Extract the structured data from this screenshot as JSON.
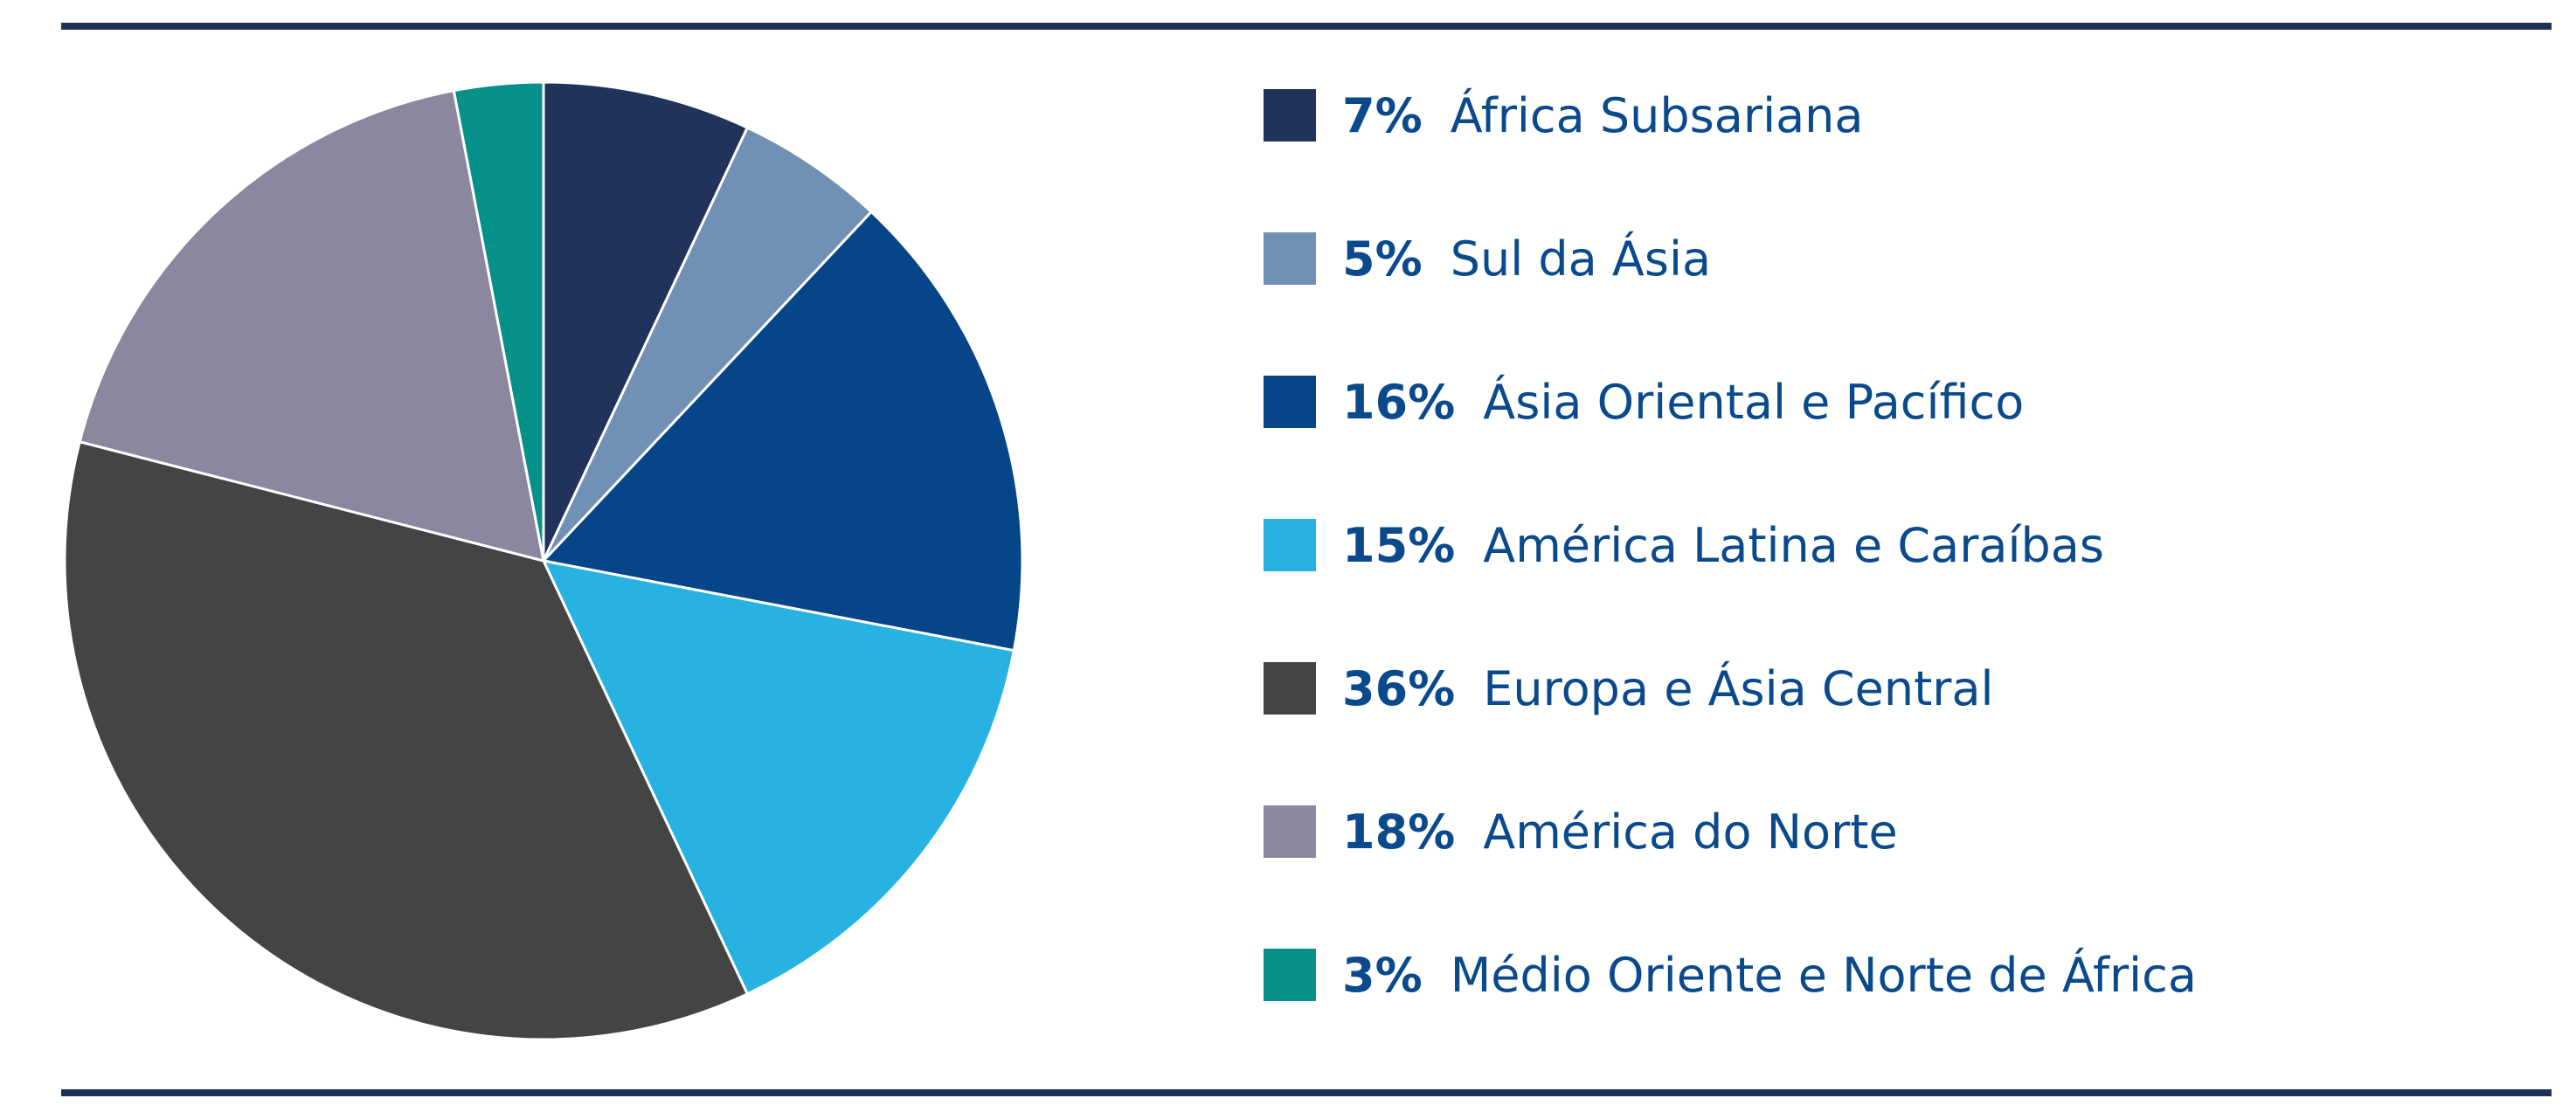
{
  "chart_data": {
    "type": "pie",
    "title": "",
    "slices": [
      {
        "label": "África Subsariana",
        "value": 7,
        "value_label": "7%",
        "color": "#21325b"
      },
      {
        "label": "Sul da Ásia",
        "value": 5,
        "value_label": "5%",
        "color": "#7090b4"
      },
      {
        "label": "Ásia Oriental e Pacífico",
        "value": 16,
        "value_label": "16%",
        "color": "#074589"
      },
      {
        "label": "América Latina e Caraíbas",
        "value": 15,
        "value_label": "15%",
        "color": "#27b2e1"
      },
      {
        "label": "Europa e Ásia Central",
        "value": 36,
        "value_label": "36%",
        "color": "#444444"
      },
      {
        "label": "América do Norte",
        "value": 18,
        "value_label": "18%",
        "color": "#8a879f"
      },
      {
        "label": "Médio Oriente e Norte de África",
        "value": 3,
        "value_label": "3%",
        "color": "#06908a"
      }
    ],
    "start_angle": "12 o'clock",
    "direction": "clockwise",
    "legend_position": "right"
  },
  "colors": {
    "rule": "#1f3056",
    "legend_text": "#0a4a8c",
    "slice_border": "#ffffff"
  }
}
